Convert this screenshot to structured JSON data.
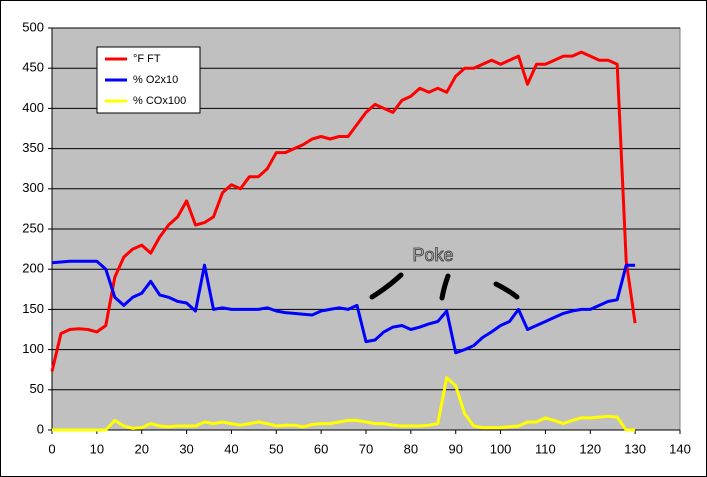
{
  "chart_data": {
    "type": "line",
    "annotation": "Poke",
    "x": [
      0,
      2,
      4,
      6,
      8,
      10,
      12,
      14,
      16,
      18,
      20,
      22,
      24,
      26,
      28,
      30,
      32,
      34,
      36,
      38,
      40,
      42,
      44,
      46,
      48,
      50,
      52,
      54,
      56,
      58,
      60,
      62,
      64,
      66,
      68,
      70,
      72,
      74,
      76,
      78,
      80,
      82,
      84,
      86,
      88,
      90,
      92,
      94,
      96,
      98,
      100,
      102,
      104,
      106,
      108,
      110,
      112,
      114,
      116,
      118,
      120,
      122,
      124,
      126,
      128,
      130
    ],
    "series": [
      {
        "name": "°F FT",
        "color": "#ff0000",
        "values": [
          73,
          120,
          125,
          126,
          125,
          122,
          130,
          190,
          215,
          225,
          230,
          220,
          240,
          255,
          265,
          285,
          255,
          258,
          265,
          295,
          305,
          300,
          315,
          315,
          325,
          345,
          345,
          350,
          355,
          362,
          365,
          362,
          365,
          365,
          380,
          395,
          405,
          400,
          395,
          410,
          415,
          425,
          420,
          425,
          420,
          440,
          450,
          450,
          455,
          460,
          455,
          460,
          465,
          430,
          455,
          455,
          460,
          465,
          465,
          470,
          465,
          460,
          460,
          455,
          210,
          133
        ]
      },
      {
        "name": "% O2x10",
        "color": "#0000ff",
        "values": [
          208,
          209,
          210,
          210,
          210,
          210,
          200,
          165,
          155,
          165,
          170,
          185,
          168,
          165,
          160,
          158,
          148,
          205,
          150,
          152,
          150,
          150,
          150,
          150,
          152,
          148,
          146,
          145,
          144,
          143,
          148,
          150,
          152,
          150,
          155,
          110,
          112,
          122,
          128,
          130,
          125,
          128,
          132,
          135,
          148,
          96,
          100,
          105,
          115,
          122,
          130,
          135,
          150,
          125,
          130,
          135,
          140,
          145,
          148,
          150,
          150,
          155,
          160,
          162,
          205,
          205
        ]
      },
      {
        "name": "% COx100",
        "color": "#ffff00",
        "values": [
          0,
          0,
          0,
          0,
          0,
          0,
          0,
          12,
          5,
          2,
          3,
          8,
          5,
          4,
          5,
          5,
          5,
          10,
          8,
          10,
          8,
          6,
          8,
          10,
          8,
          5,
          6,
          6,
          4,
          7,
          8,
          8,
          10,
          12,
          12,
          10,
          8,
          8,
          6,
          5,
          5,
          5,
          6,
          8,
          65,
          55,
          20,
          5,
          3,
          3,
          3,
          4,
          5,
          10,
          10,
          15,
          12,
          8,
          12,
          15,
          15,
          16,
          17,
          16,
          0,
          0
        ]
      }
    ],
    "xlim": [
      0,
      140
    ],
    "xticks": [
      0,
      10,
      20,
      30,
      40,
      50,
      60,
      70,
      80,
      90,
      100,
      110,
      120,
      130,
      140
    ],
    "ylim": [
      0,
      500
    ],
    "yticks": [
      0,
      50,
      100,
      150,
      200,
      250,
      300,
      350,
      400,
      450,
      500
    ],
    "grid": true,
    "legend": "top-left",
    "plot_background": "#c0c0c0"
  }
}
